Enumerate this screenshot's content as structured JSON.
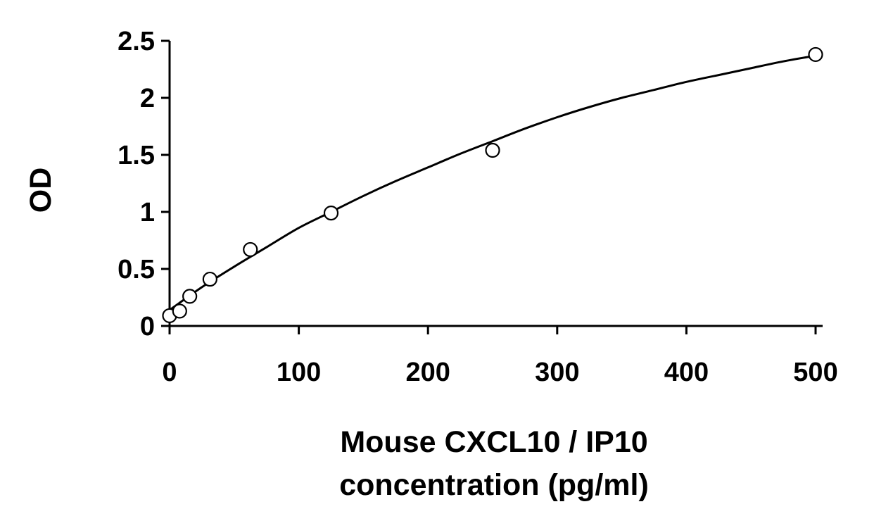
{
  "chart_data": {
    "type": "scatter",
    "title": "",
    "xlabel_lines": [
      "Mouse CXCL10 / IP10",
      "concentration (pg/ml)"
    ],
    "ylabel": "OD",
    "xlim": [
      0,
      500
    ],
    "ylim": [
      0,
      2.5
    ],
    "x_ticks": [
      {
        "value": 0,
        "label": "0"
      },
      {
        "value": 100,
        "label": "100"
      },
      {
        "value": 200,
        "label": "200"
      },
      {
        "value": 300,
        "label": "300"
      },
      {
        "value": 400,
        "label": "400"
      },
      {
        "value": 500,
        "label": "500"
      }
    ],
    "y_ticks": [
      {
        "value": 0,
        "label": "0"
      },
      {
        "value": 0.5,
        "label": "0.5"
      },
      {
        "value": 1,
        "label": "1"
      },
      {
        "value": 1.5,
        "label": "1.5"
      },
      {
        "value": 2,
        "label": "2"
      },
      {
        "value": 2.5,
        "label": "2.5"
      }
    ],
    "grid": false,
    "legend": "none",
    "series": [
      {
        "marker": "open-circle",
        "x": [
          0,
          7.8,
          15.6,
          31.25,
          62.5,
          125,
          250,
          500
        ],
        "y": [
          0.09,
          0.13,
          0.26,
          0.41,
          0.67,
          0.99,
          1.54,
          2.38
        ]
      }
    ],
    "fit_curve": {
      "x": [
        0,
        25,
        50,
        75,
        100,
        125,
        150,
        175,
        200,
        225,
        250,
        275,
        300,
        325,
        350,
        375,
        400,
        425,
        450,
        475,
        500
      ],
      "y": [
        0.14,
        0.34,
        0.52,
        0.69,
        0.86,
        1.0,
        1.14,
        1.27,
        1.39,
        1.51,
        1.62,
        1.73,
        1.83,
        1.92,
        2.0,
        2.07,
        2.14,
        2.2,
        2.26,
        2.32,
        2.37
      ]
    },
    "colors": {
      "ink": "#000000",
      "background": "#ffffff"
    }
  }
}
